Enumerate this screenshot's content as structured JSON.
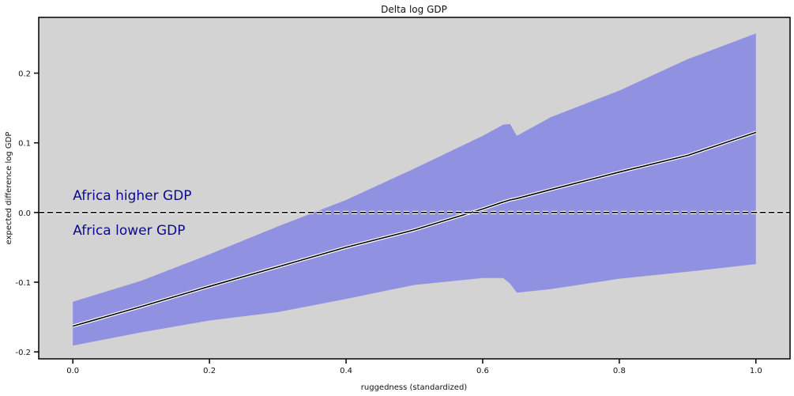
{
  "chart_data": {
    "type": "area",
    "title": "Delta log GDP",
    "xlabel": "ruggedness (standardized)",
    "ylabel": "expected difference log GDP",
    "xlim": [
      -0.05,
      1.05
    ],
    "ylim": [
      -0.21,
      0.28
    ],
    "xticks": [
      0.0,
      0.2,
      0.4,
      0.6,
      0.8,
      1.0
    ],
    "xtick_labels": [
      "0.0",
      "0.2",
      "0.4",
      "0.6",
      "0.8",
      "1.0"
    ],
    "yticks": [
      -0.2,
      -0.1,
      0.0,
      0.1,
      0.2
    ],
    "ytick_labels": [
      "-0.2",
      "-0.1",
      "0.0",
      "0.1",
      "0.2"
    ],
    "background_color": "#d3d3d3",
    "band_color": "#7b7be6",
    "line_color": "#000000",
    "annotation_color": "#0b0b8a",
    "grid": false,
    "annotations": [
      {
        "text": "Africa higher GDP",
        "x": 0.0,
        "y": 0.025
      },
      {
        "text": "Africa lower GDP",
        "x": 0.0,
        "y": -0.025
      }
    ],
    "reference_line": {
      "y": 0.0,
      "style": "dashed"
    },
    "x": [
      0.0,
      0.1,
      0.2,
      0.3,
      0.4,
      0.5,
      0.6,
      0.63,
      0.64,
      0.65,
      0.7,
      0.8,
      0.9,
      1.0
    ],
    "series": [
      {
        "role": "mean",
        "values": [
          -0.163,
          -0.135,
          -0.106,
          -0.078,
          -0.05,
          -0.025,
          0.005,
          0.015,
          0.018,
          0.02,
          0.033,
          0.058,
          0.082,
          0.115
        ]
      },
      {
        "role": "upper",
        "values": [
          -0.128,
          -0.098,
          -0.06,
          -0.02,
          0.018,
          0.063,
          0.11,
          0.126,
          0.127,
          0.11,
          0.137,
          0.175,
          0.22,
          0.257
        ]
      },
      {
        "role": "lower",
        "values": [
          -0.191,
          -0.172,
          -0.155,
          -0.143,
          -0.124,
          -0.104,
          -0.094,
          -0.094,
          -0.102,
          -0.115,
          -0.11,
          -0.095,
          -0.085,
          -0.074
        ]
      }
    ]
  }
}
